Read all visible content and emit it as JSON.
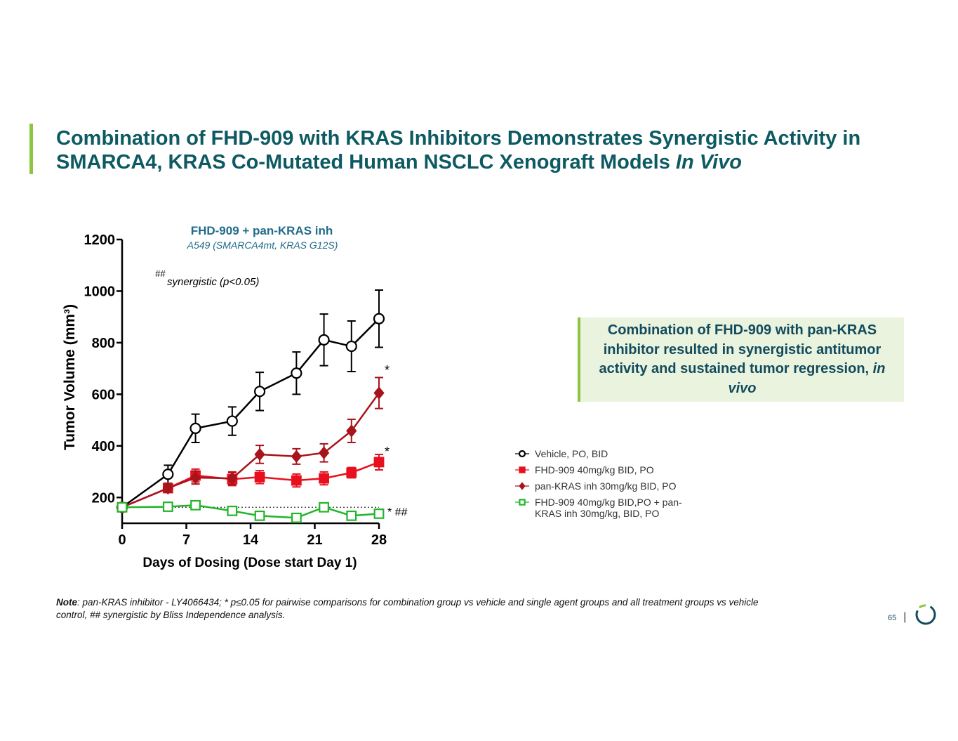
{
  "slide": {
    "title": "Combination of FHD-909 with KRAS Inhibitors Demonstrates Synergistic Activity in SMARCA4, KRAS Co-Mutated Human NSCLC Xenograft Models",
    "title_italic": "In Vivo",
    "callout": "Combination of FHD-909 with pan-KRAS inhibitor resulted in synergistic antitumor activity and sustained tumor regression,",
    "callout_italic": "in vivo",
    "note_label": "Note",
    "note": ": pan-KRAS inhibitor - LY4066434; * p≤0.05 for pairwise comparisons for combination group vs vehicle and single agent groups and all treatment groups vs vehicle control, ## synergistic by Bliss Independence analysis.",
    "page_number": "65"
  },
  "chart_data": {
    "type": "line",
    "title": "FHD-909 + pan-KRAS inh",
    "subtitle": "A549 (SMARCA4mt, KRAS G12S)",
    "x_label": "Days of Dosing (Dose start Day 1)",
    "y_label": "Tumor Volume (mm³)",
    "annotations": [
      "##",
      "synergistic (p<0.05)",
      "*",
      "*",
      "* ##"
    ],
    "x": [
      0,
      5,
      8,
      12,
      15,
      19,
      22,
      25,
      28
    ],
    "xlim": [
      0,
      28
    ],
    "xticks": [
      0,
      7,
      14,
      21,
      28
    ],
    "ylim": [
      100,
      1200
    ],
    "yticks": [
      200,
      400,
      600,
      800,
      1000,
      1200
    ],
    "series": [
      {
        "name": "Vehicle, PO, BID",
        "color": "#000000",
        "marker": "circle-open",
        "values": [
          162,
          290,
          468,
          496,
          611,
          682,
          811,
          786,
          893
        ],
        "errors": [
          0,
          35,
          55,
          55,
          74,
          82,
          100,
          98,
          111
        ]
      },
      {
        "name": "FHD-909 40mg/kg BID, PO",
        "color": "#e8101e",
        "marker": "square",
        "values": [
          162,
          236,
          285,
          271,
          279,
          266,
          274,
          296,
          337
        ],
        "errors": [
          0,
          15,
          25,
          25,
          25,
          25,
          25,
          20,
          30
        ]
      },
      {
        "name": "pan-KRAS inh 30mg/kg BID, PO",
        "color": "#a8141c",
        "marker": "diamond",
        "values": [
          162,
          236,
          277,
          274,
          367,
          359,
          373,
          458,
          605
        ],
        "errors": [
          0,
          15,
          25,
          25,
          35,
          30,
          35,
          45,
          60
        ]
      },
      {
        "name": "FHD-909 40mg/kg BID,PO + pan-KRAS inh 30mg/kg, BID, PO",
        "color": "#22b52a",
        "marker": "square-open",
        "values": [
          162,
          164,
          170,
          148,
          129,
          121,
          162,
          129,
          137
        ],
        "errors": [
          0,
          10,
          10,
          10,
          10,
          10,
          10,
          10,
          10
        ]
      }
    ]
  }
}
